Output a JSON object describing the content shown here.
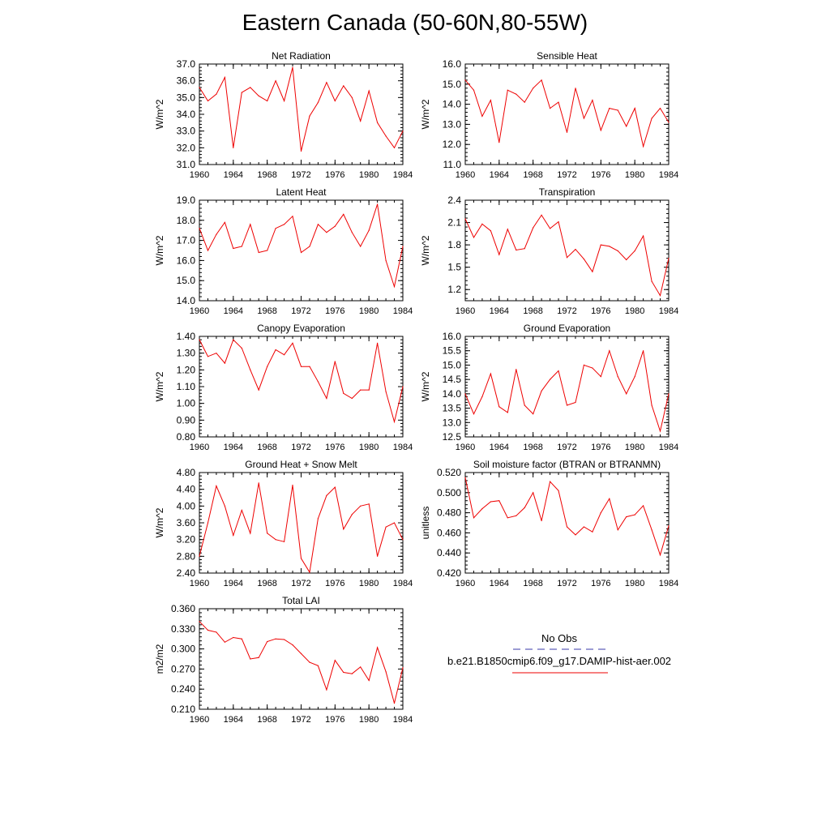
{
  "title": "Eastern Canada (50-60N,80-55W)",
  "legend": {
    "obs_label": "No Obs",
    "case_label": "b.e21.B1850cmip6.f09_g17.DAMIP-hist-aer.002",
    "obs_color": "#3a3aaa",
    "case_color": "#ee0000"
  },
  "chart_data": [
    {
      "type": "line",
      "title": "Net Radiation",
      "ylabel": "W/m^2",
      "xlim": [
        1960,
        1984
      ],
      "ylim": [
        31.0,
        37.0
      ],
      "xticks": [
        1960,
        1964,
        1968,
        1972,
        1976,
        1980,
        1984
      ],
      "yticks": [
        "31.0",
        "32.0",
        "33.0",
        "34.0",
        "35.0",
        "36.0",
        "37.0"
      ],
      "x": [
        1960,
        1961,
        1962,
        1963,
        1964,
        1965,
        1966,
        1967,
        1968,
        1969,
        1970,
        1971,
        1972,
        1973,
        1974,
        1975,
        1976,
        1977,
        1978,
        1979,
        1980,
        1981,
        1982,
        1983,
        1984
      ],
      "series": [
        {
          "values": [
            35.6,
            34.8,
            35.2,
            36.2,
            32.0,
            35.3,
            35.6,
            35.1,
            34.8,
            36.0,
            34.8,
            36.8,
            31.8,
            33.9,
            34.7,
            35.9,
            34.8,
            35.7,
            35.0,
            33.6,
            35.4,
            33.5,
            32.7,
            32.0,
            33.0
          ]
        }
      ]
    },
    {
      "type": "line",
      "title": "Sensible Heat",
      "ylabel": "W/m^2",
      "xlim": [
        1960,
        1984
      ],
      "ylim": [
        11.0,
        16.0
      ],
      "xticks": [
        1960,
        1964,
        1968,
        1972,
        1976,
        1980,
        1984
      ],
      "yticks": [
        "11.0",
        "12.0",
        "13.0",
        "14.0",
        "15.0",
        "16.0"
      ],
      "x": [
        1960,
        1961,
        1962,
        1963,
        1964,
        1965,
        1966,
        1967,
        1968,
        1969,
        1970,
        1971,
        1972,
        1973,
        1974,
        1975,
        1976,
        1977,
        1978,
        1979,
        1980,
        1981,
        1982,
        1983,
        1984
      ],
      "series": [
        {
          "values": [
            15.2,
            14.7,
            13.4,
            14.2,
            12.1,
            14.7,
            14.5,
            14.1,
            14.8,
            15.2,
            13.8,
            14.1,
            12.6,
            14.8,
            13.3,
            14.2,
            12.7,
            13.8,
            13.7,
            12.9,
            13.8,
            11.9,
            13.3,
            13.8,
            13.1
          ]
        }
      ]
    },
    {
      "type": "line",
      "title": "Latent Heat",
      "ylabel": "W/m^2",
      "xlim": [
        1960,
        1984
      ],
      "ylim": [
        14.0,
        19.0
      ],
      "xticks": [
        1960,
        1964,
        1968,
        1972,
        1976,
        1980,
        1984
      ],
      "yticks": [
        "14.0",
        "15.0",
        "16.0",
        "17.0",
        "18.0",
        "19.0"
      ],
      "x": [
        1960,
        1961,
        1962,
        1963,
        1964,
        1965,
        1966,
        1967,
        1968,
        1969,
        1970,
        1971,
        1972,
        1973,
        1974,
        1975,
        1976,
        1977,
        1978,
        1979,
        1980,
        1981,
        1982,
        1983,
        1984
      ],
      "series": [
        {
          "values": [
            17.6,
            16.5,
            17.3,
            17.9,
            16.6,
            16.7,
            17.8,
            16.4,
            16.5,
            17.6,
            17.8,
            18.2,
            16.4,
            16.7,
            17.8,
            17.4,
            17.7,
            18.3,
            17.4,
            16.7,
            17.5,
            18.8,
            16.0,
            14.7,
            16.7
          ]
        }
      ]
    },
    {
      "type": "line",
      "title": "Transpiration",
      "ylabel": "W/m^2",
      "xlim": [
        1960,
        1984
      ],
      "ylim": [
        1.05,
        2.4
      ],
      "xticks": [
        1960,
        1964,
        1968,
        1972,
        1976,
        1980,
        1984
      ],
      "yticks": [
        "1.2",
        "1.5",
        "1.8",
        "2.1",
        "2.4"
      ],
      "x": [
        1960,
        1961,
        1962,
        1963,
        1964,
        1965,
        1966,
        1967,
        1968,
        1969,
        1970,
        1971,
        1972,
        1973,
        1974,
        1975,
        1976,
        1977,
        1978,
        1979,
        1980,
        1981,
        1982,
        1983,
        1984
      ],
      "series": [
        {
          "values": [
            2.15,
            1.9,
            2.08,
            1.99,
            1.67,
            2.01,
            1.73,
            1.75,
            2.03,
            2.2,
            2.02,
            2.11,
            1.63,
            1.74,
            1.61,
            1.44,
            1.8,
            1.78,
            1.72,
            1.6,
            1.72,
            1.92,
            1.31,
            1.12,
            1.62
          ]
        }
      ]
    },
    {
      "type": "line",
      "title": "Canopy Evaporation",
      "ylabel": "W/m^2",
      "xlim": [
        1960,
        1984
      ],
      "ylim": [
        0.8,
        1.4
      ],
      "xticks": [
        1960,
        1964,
        1968,
        1972,
        1976,
        1980,
        1984
      ],
      "yticks": [
        "0.80",
        "0.90",
        "1.00",
        "1.10",
        "1.20",
        "1.30",
        "1.40"
      ],
      "x": [
        1960,
        1961,
        1962,
        1963,
        1964,
        1965,
        1966,
        1967,
        1968,
        1969,
        1970,
        1971,
        1972,
        1973,
        1974,
        1975,
        1976,
        1977,
        1978,
        1979,
        1980,
        1981,
        1982,
        1983,
        1984
      ],
      "series": [
        {
          "values": [
            1.38,
            1.28,
            1.3,
            1.24,
            1.38,
            1.33,
            1.2,
            1.08,
            1.22,
            1.32,
            1.29,
            1.36,
            1.22,
            1.22,
            1.13,
            1.03,
            1.25,
            1.06,
            1.03,
            1.08,
            1.08,
            1.36,
            1.07,
            0.89,
            1.1
          ]
        }
      ]
    },
    {
      "type": "line",
      "title": "Ground Evaporation",
      "ylabel": "W/m^2",
      "xlim": [
        1960,
        1984
      ],
      "ylim": [
        12.5,
        16.0
      ],
      "xticks": [
        1960,
        1964,
        1968,
        1972,
        1976,
        1980,
        1984
      ],
      "yticks": [
        "12.5",
        "13.0",
        "13.5",
        "14.0",
        "14.5",
        "15.0",
        "15.5",
        "16.0"
      ],
      "x": [
        1960,
        1961,
        1962,
        1963,
        1964,
        1965,
        1966,
        1967,
        1968,
        1969,
        1970,
        1971,
        1972,
        1973,
        1974,
        1975,
        1976,
        1977,
        1978,
        1979,
        1980,
        1981,
        1982,
        1983,
        1984
      ],
      "series": [
        {
          "values": [
            14.0,
            13.3,
            13.9,
            14.7,
            13.55,
            13.35,
            14.85,
            13.6,
            13.3,
            14.1,
            14.5,
            14.8,
            13.6,
            13.7,
            15.0,
            14.9,
            14.6,
            15.5,
            14.6,
            14.0,
            14.6,
            15.5,
            13.6,
            12.7,
            14.0
          ]
        }
      ]
    },
    {
      "type": "line",
      "title": "Ground Heat + Snow Melt",
      "ylabel": "W/m^2",
      "xlim": [
        1960,
        1984
      ],
      "ylim": [
        2.4,
        4.8
      ],
      "xticks": [
        1960,
        1964,
        1968,
        1972,
        1976,
        1980,
        1984
      ],
      "yticks": [
        "2.40",
        "2.80",
        "3.20",
        "3.60",
        "4.00",
        "4.40",
        "4.80"
      ],
      "x": [
        1960,
        1961,
        1962,
        1963,
        1964,
        1965,
        1966,
        1967,
        1968,
        1969,
        1970,
        1971,
        1972,
        1973,
        1974,
        1975,
        1976,
        1977,
        1978,
        1979,
        1980,
        1981,
        1982,
        1983,
        1984
      ],
      "series": [
        {
          "values": [
            2.8,
            3.6,
            4.48,
            4.0,
            3.3,
            3.9,
            3.35,
            4.55,
            3.35,
            3.2,
            3.15,
            4.5,
            2.75,
            2.42,
            3.7,
            4.25,
            4.45,
            3.45,
            3.8,
            4.0,
            4.05,
            2.8,
            3.5,
            3.6,
            3.2
          ]
        }
      ]
    },
    {
      "type": "line",
      "title": "Soil moisture factor (BTRAN or BTRANMN)",
      "ylabel": "unitless",
      "xlim": [
        1960,
        1984
      ],
      "ylim": [
        0.42,
        0.52
      ],
      "xticks": [
        1960,
        1964,
        1968,
        1972,
        1976,
        1980,
        1984
      ],
      "yticks": [
        "0.420",
        "0.440",
        "0.460",
        "0.480",
        "0.500",
        "0.520"
      ],
      "x": [
        1960,
        1961,
        1962,
        1963,
        1964,
        1965,
        1966,
        1967,
        1968,
        1969,
        1970,
        1971,
        1972,
        1973,
        1974,
        1975,
        1976,
        1977,
        1978,
        1979,
        1980,
        1981,
        1982,
        1983,
        1984
      ],
      "series": [
        {
          "values": [
            0.515,
            0.475,
            0.484,
            0.491,
            0.492,
            0.475,
            0.477,
            0.485,
            0.5,
            0.472,
            0.511,
            0.502,
            0.466,
            0.458,
            0.466,
            0.461,
            0.48,
            0.494,
            0.463,
            0.476,
            0.478,
            0.487,
            0.463,
            0.438,
            0.467
          ]
        }
      ]
    },
    {
      "type": "line",
      "title": "Total LAI",
      "ylabel": "m2/m2",
      "xlim": [
        1960,
        1984
      ],
      "ylim": [
        0.21,
        0.36
      ],
      "xticks": [
        1960,
        1964,
        1968,
        1972,
        1976,
        1980,
        1984
      ],
      "yticks": [
        "0.210",
        "0.240",
        "0.270",
        "0.300",
        "0.330",
        "0.360"
      ],
      "x": [
        1960,
        1961,
        1962,
        1963,
        1964,
        1965,
        1966,
        1967,
        1968,
        1969,
        1970,
        1971,
        1972,
        1973,
        1974,
        1975,
        1976,
        1977,
        1978,
        1979,
        1980,
        1981,
        1982,
        1983,
        1984
      ],
      "series": [
        {
          "values": [
            0.341,
            0.328,
            0.325,
            0.31,
            0.317,
            0.315,
            0.285,
            0.287,
            0.311,
            0.315,
            0.314,
            0.306,
            0.293,
            0.28,
            0.275,
            0.239,
            0.283,
            0.265,
            0.263,
            0.273,
            0.253,
            0.302,
            0.266,
            0.219,
            0.272
          ]
        }
      ]
    }
  ]
}
